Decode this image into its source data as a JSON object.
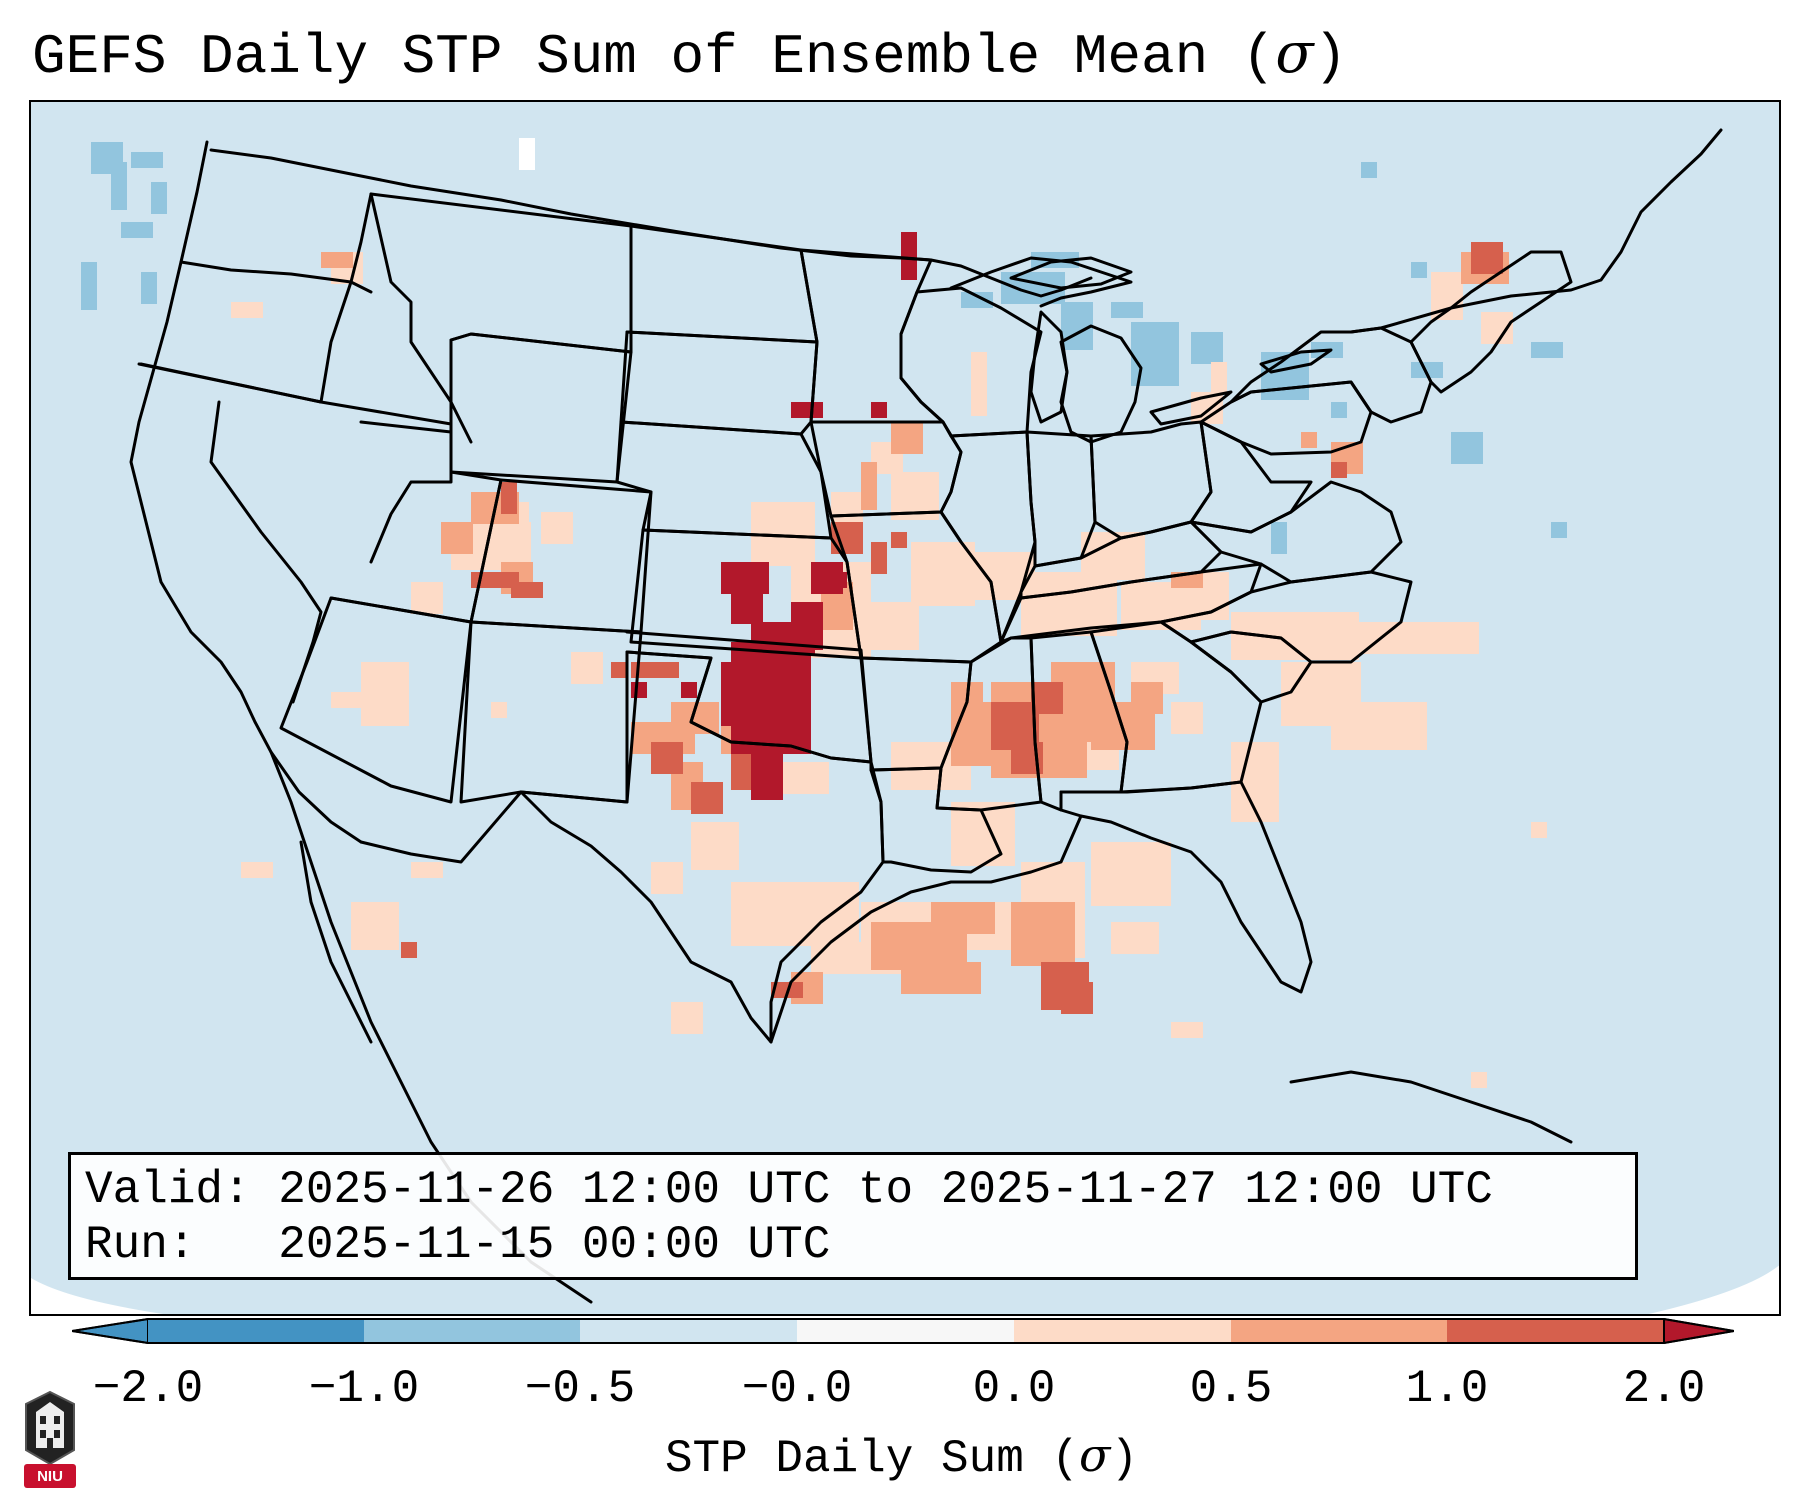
{
  "title": {
    "text": "GEFS Daily STP Sum of Ensemble Mean (",
    "sigma": "σ",
    "close": ")"
  },
  "valid_box": {
    "valid_label": "Valid:",
    "valid_value": "2025-11-26 12:00 UTC to 2025-11-27 12:00 UTC",
    "run_label": "Run:",
    "run_value": "2025-11-15 00:00 UTC"
  },
  "colorbar": {
    "label_prefix": "STP Daily Sum (",
    "label_sigma": "σ",
    "label_suffix": ")",
    "ticks": [
      "−2.0",
      "−1.0",
      "−0.5",
      "−0.0",
      "0.0",
      "0.5",
      "1.0",
      "2.0"
    ],
    "bin_colors": [
      "#4393c3",
      "#92c5de",
      "#d1e5f0",
      "#f7f7f7",
      "#fddbc7",
      "#f4a582",
      "#d6604d",
      "#b2182b"
    ]
  },
  "colors": {
    "ocean_background": "#d1e5f0",
    "negative_weak": "#92c5de",
    "positive_weak": "#fddbc7",
    "positive_moderate": "#f4a582",
    "positive_strong": "#d6604d",
    "positive_extreme": "#b2182b"
  },
  "logo": {
    "text": "NIU"
  }
}
